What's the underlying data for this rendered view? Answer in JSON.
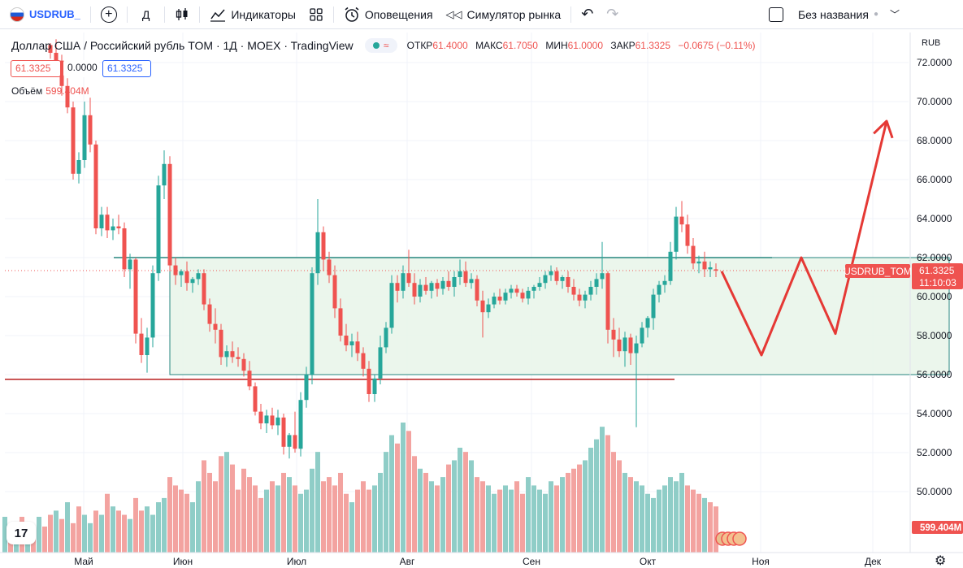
{
  "toolbar": {
    "symbol": "USDRUB_",
    "interval": "Д",
    "indicators_label": "Индикаторы",
    "alerts_label": "Оповещения",
    "replay_label": "Симулятор рынка",
    "layout_name": "Без названия"
  },
  "legend": {
    "title": "Доллар США / Российский рубль TOM · 1Д · MOEX · TradingView",
    "open_label": "ОТКР",
    "open": "61.4000",
    "high_label": "МАКС",
    "high": "61.7050",
    "low_label": "МИН",
    "low": "61.0000",
    "close_label": "ЗАКР",
    "close": "61.3325",
    "change": "−0.0675 (−0.11%)",
    "bid": "61.3325",
    "spread": "0.0000",
    "ask": "61.3325",
    "volume_label": "Объём",
    "volume": "599.404M"
  },
  "chart_data": {
    "type": "candlestick",
    "title": "Доллар США / Российский рубль TOM · 1Д · MOEX · TradingView",
    "currency": "RUB",
    "ylim": [
      48.0,
      73.0
    ],
    "y_ticks": [
      "72.0000",
      "70.0000",
      "68.0000",
      "66.0000",
      "64.0000",
      "62.0000",
      "60.0000",
      "58.0000",
      "56.0000",
      "54.0000",
      "52.0000",
      "50.0000"
    ],
    "x_labels": [
      "Май",
      "Июн",
      "Июл",
      "Авг",
      "Сен",
      "Окт",
      "Ноя",
      "Дек"
    ],
    "last_price": "61.3325",
    "countdown": "11:10:03",
    "series_label": "USDRUB_TOM",
    "volume_label": "599.404M",
    "colors": {
      "up": "#26a69a",
      "down": "#ef5350",
      "up_vol": "#8fcdc7",
      "down_vol": "#f3a3a0",
      "zone": "#e8f5e9",
      "zone_border": "#26867f",
      "arrow": "#e53935"
    },
    "candles": [
      [
        72.9,
        73.0,
        72.2,
        72.5
      ],
      [
        72.5,
        73.2,
        71.6,
        72.1
      ],
      [
        72.1,
        72.4,
        70.3,
        70.8
      ],
      [
        70.8,
        71.2,
        69.4,
        69.7
      ],
      [
        69.7,
        70.0,
        66.0,
        66.3
      ],
      [
        66.3,
        67.4,
        65.8,
        67.0
      ],
      [
        67.0,
        70.0,
        66.6,
        69.3
      ],
      [
        69.3,
        70.2,
        67.4,
        67.8
      ],
      [
        67.8,
        68.0,
        63.2,
        63.5
      ],
      [
        63.5,
        64.6,
        63.1,
        64.2
      ],
      [
        64.2,
        64.6,
        63.0,
        63.4
      ],
      [
        63.4,
        64.0,
        62.9,
        63.6
      ],
      [
        63.6,
        64.2,
        63.2,
        63.5
      ],
      [
        63.5,
        63.8,
        61.0,
        61.4
      ],
      [
        61.4,
        62.2,
        60.4,
        61.9
      ],
      [
        61.9,
        62.0,
        57.6,
        58.1
      ],
      [
        58.1,
        58.9,
        56.6,
        57.0
      ],
      [
        57.0,
        58.4,
        56.1,
        57.9
      ],
      [
        57.9,
        61.6,
        57.4,
        61.2
      ],
      [
        61.2,
        66.2,
        60.8,
        65.7
      ],
      [
        65.7,
        67.5,
        65.0,
        66.8
      ],
      [
        66.8,
        67.2,
        61.3,
        61.6
      ],
      [
        61.6,
        62.0,
        60.6,
        61.1
      ],
      [
        61.1,
        61.4,
        60.5,
        61.3
      ],
      [
        61.3,
        61.8,
        60.3,
        60.7
      ],
      [
        60.7,
        61.0,
        60.2,
        60.9
      ],
      [
        60.9,
        61.4,
        60.6,
        61.2
      ],
      [
        61.2,
        61.4,
        59.3,
        59.6
      ],
      [
        59.6,
        59.9,
        58.2,
        58.6
      ],
      [
        58.6,
        59.4,
        57.6,
        58.3
      ],
      [
        58.3,
        58.6,
        56.5,
        56.9
      ],
      [
        56.9,
        57.5,
        56.4,
        57.2
      ],
      [
        57.2,
        57.7,
        56.6,
        56.9
      ],
      [
        56.9,
        57.4,
        56.4,
        56.8
      ],
      [
        56.8,
        57.1,
        55.9,
        56.2
      ],
      [
        56.2,
        56.7,
        55.2,
        55.4
      ],
      [
        55.4,
        55.6,
        53.9,
        54.1
      ],
      [
        54.1,
        54.5,
        53.2,
        53.5
      ],
      [
        53.5,
        54.2,
        53.0,
        53.9
      ],
      [
        53.9,
        54.3,
        53.2,
        53.4
      ],
      [
        53.4,
        54.2,
        52.9,
        53.8
      ],
      [
        53.8,
        54.0,
        51.9,
        52.3
      ],
      [
        52.3,
        53.0,
        51.7,
        52.9
      ],
      [
        52.9,
        54.1,
        52.0,
        52.2
      ],
      [
        52.2,
        55.1,
        51.8,
        54.7
      ],
      [
        54.7,
        56.4,
        54.3,
        56.0
      ],
      [
        56.0,
        61.5,
        55.5,
        61.2
      ],
      [
        61.2,
        65.0,
        60.6,
        63.3
      ],
      [
        63.3,
        63.6,
        61.3,
        61.9
      ],
      [
        61.9,
        62.3,
        60.7,
        61.1
      ],
      [
        61.1,
        61.6,
        58.9,
        59.4
      ],
      [
        59.4,
        59.9,
        57.7,
        58.0
      ],
      [
        58.0,
        58.6,
        57.2,
        57.5
      ],
      [
        57.5,
        58.1,
        56.9,
        57.7
      ],
      [
        57.7,
        58.2,
        56.7,
        57.1
      ],
      [
        57.1,
        57.4,
        55.9,
        56.3
      ],
      [
        56.3,
        56.7,
        54.6,
        55.0
      ],
      [
        55.0,
        56.0,
        54.6,
        55.8
      ],
      [
        55.8,
        58.0,
        55.5,
        57.4
      ],
      [
        57.4,
        58.7,
        57.1,
        58.4
      ],
      [
        58.4,
        61.1,
        58.1,
        60.7
      ],
      [
        60.7,
        61.1,
        59.7,
        60.3
      ],
      [
        60.3,
        61.6,
        59.9,
        61.2
      ],
      [
        61.2,
        62.4,
        60.5,
        60.7
      ],
      [
        60.7,
        61.2,
        59.6,
        60.0
      ],
      [
        60.0,
        60.9,
        59.7,
        60.6
      ],
      [
        60.6,
        61.0,
        60.1,
        60.3
      ],
      [
        60.3,
        60.8,
        59.9,
        60.7
      ],
      [
        60.7,
        60.9,
        60.0,
        60.4
      ],
      [
        60.4,
        61.0,
        60.1,
        60.8
      ],
      [
        60.8,
        61.3,
        60.3,
        60.5
      ],
      [
        60.5,
        61.3,
        60.0,
        61.0
      ],
      [
        61.0,
        61.9,
        60.6,
        61.3
      ],
      [
        61.3,
        61.8,
        60.5,
        60.7
      ],
      [
        60.7,
        61.2,
        60.4,
        60.9
      ],
      [
        60.9,
        61.1,
        59.5,
        59.8
      ],
      [
        59.8,
        60.3,
        57.9,
        59.2
      ],
      [
        59.2,
        59.9,
        58.9,
        59.6
      ],
      [
        59.6,
        60.2,
        59.4,
        60.0
      ],
      [
        60.0,
        60.4,
        59.6,
        59.8
      ],
      [
        59.8,
        60.4,
        59.6,
        60.2
      ],
      [
        60.2,
        60.6,
        59.9,
        60.4
      ],
      [
        60.4,
        60.6,
        60.0,
        60.2
      ],
      [
        60.2,
        60.4,
        59.7,
        59.9
      ],
      [
        59.9,
        60.5,
        59.6,
        60.3
      ],
      [
        60.3,
        60.6,
        59.9,
        60.5
      ],
      [
        60.5,
        61.0,
        60.3,
        60.7
      ],
      [
        60.7,
        61.3,
        60.4,
        61.1
      ],
      [
        61.1,
        61.6,
        60.8,
        61.3
      ],
      [
        61.3,
        61.5,
        60.6,
        60.8
      ],
      [
        60.8,
        61.1,
        60.4,
        61.0
      ],
      [
        61.0,
        61.3,
        60.2,
        60.5
      ],
      [
        60.5,
        60.9,
        59.8,
        60.1
      ],
      [
        60.1,
        60.4,
        59.5,
        59.8
      ],
      [
        59.8,
        60.3,
        59.4,
        60.1
      ],
      [
        60.1,
        60.8,
        59.8,
        60.5
      ],
      [
        60.5,
        61.2,
        60.1,
        60.9
      ],
      [
        60.9,
        62.8,
        60.4,
        61.2
      ],
      [
        61.2,
        61.3,
        57.6,
        58.3
      ],
      [
        58.3,
        58.9,
        56.9,
        57.8
      ],
      [
        57.8,
        58.4,
        56.9,
        57.2
      ],
      [
        57.2,
        58.2,
        56.4,
        57.9
      ],
      [
        57.9,
        58.1,
        56.5,
        57.1
      ],
      [
        57.1,
        58.0,
        53.3,
        57.6
      ],
      [
        57.6,
        58.7,
        57.4,
        58.4
      ],
      [
        58.4,
        59.0,
        57.9,
        58.9
      ],
      [
        58.9,
        60.4,
        58.3,
        60.1
      ],
      [
        60.1,
        60.8,
        59.7,
        60.6
      ],
      [
        60.6,
        61.1,
        60.2,
        60.8
      ],
      [
        60.8,
        62.8,
        60.6,
        62.3
      ],
      [
        62.3,
        64.6,
        61.9,
        64.1
      ],
      [
        64.1,
        64.9,
        63.3,
        63.7
      ],
      [
        63.7,
        64.2,
        62.2,
        62.6
      ],
      [
        62.6,
        63.0,
        61.4,
        61.7
      ],
      [
        61.7,
        62.1,
        61.2,
        61.8
      ],
      [
        61.8,
        62.3,
        61.0,
        61.4
      ],
      [
        61.4,
        61.8,
        61.0,
        61.5
      ],
      [
        61.4,
        61.705,
        61.0,
        61.3325
      ]
    ],
    "volumes": [
      "d",
      "u",
      "d",
      "u",
      "d",
      "d",
      "u",
      "u",
      "d",
      "u",
      "d",
      "u",
      "d",
      "d",
      "u",
      "d",
      "d",
      "u",
      "u",
      "u",
      "u",
      "d",
      "d",
      "d",
      "d",
      "u",
      "u",
      "d",
      "d",
      "d",
      "d",
      "u",
      "d",
      "d",
      "d",
      "d",
      "d",
      "d",
      "u",
      "d",
      "u",
      "d",
      "u",
      "d",
      "u",
      "u",
      "u",
      "u",
      "d",
      "d",
      "d",
      "d",
      "d",
      "u",
      "d",
      "d",
      "d",
      "u",
      "u",
      "u",
      "u",
      "d",
      "u",
      "d",
      "d",
      "u",
      "d",
      "u",
      "d",
      "u",
      "d",
      "u",
      "u",
      "d",
      "u",
      "d",
      "d",
      "u",
      "u",
      "d",
      "u",
      "u",
      "d",
      "d",
      "u",
      "u",
      "u",
      "u",
      "u",
      "d",
      "u",
      "d",
      "d",
      "d",
      "u",
      "u",
      "u",
      "u",
      "d",
      "d",
      "d",
      "u",
      "d",
      "u",
      "u",
      "u",
      "u",
      "u",
      "u",
      "u",
      "u",
      "u",
      "d",
      "d",
      "d",
      "u",
      "d",
      "d"
    ],
    "volume_values": [
      9,
      10,
      8,
      12,
      7,
      11,
      9,
      7,
      10,
      9,
      14,
      11,
      10,
      9,
      8,
      13,
      10,
      11,
      9,
      12,
      13,
      18,
      16,
      15,
      14,
      12,
      17,
      22,
      19,
      17,
      23,
      24,
      21,
      15,
      20,
      18,
      16,
      13,
      15,
      17,
      16,
      19,
      18,
      16,
      14,
      15,
      20,
      24,
      17,
      18,
      16,
      19,
      14,
      12,
      15,
      17,
      15,
      16,
      19,
      24,
      28,
      26,
      31,
      29,
      23,
      20,
      19,
      17,
      16,
      18,
      21,
      22,
      25,
      24,
      22,
      18,
      17,
      16,
      14,
      15,
      16,
      15,
      17,
      14,
      18,
      16,
      15,
      14,
      17,
      16,
      18,
      19,
      20,
      21,
      22,
      25,
      27,
      30,
      28,
      24,
      22,
      19,
      18,
      17,
      16,
      14,
      13,
      15,
      16,
      18,
      17,
      19,
      16,
      15,
      14,
      13,
      12,
      11
    ],
    "zone": {
      "y_top": 62.0,
      "y_bottom": 56.0,
      "x_start": 21,
      "x_end": 158
    },
    "projection": [
      [
        118,
        61.3
      ],
      [
        125,
        57.0
      ],
      [
        132,
        62.0
      ],
      [
        138,
        58.1
      ],
      [
        147,
        69.0
      ]
    ],
    "support_line": 55.8
  }
}
